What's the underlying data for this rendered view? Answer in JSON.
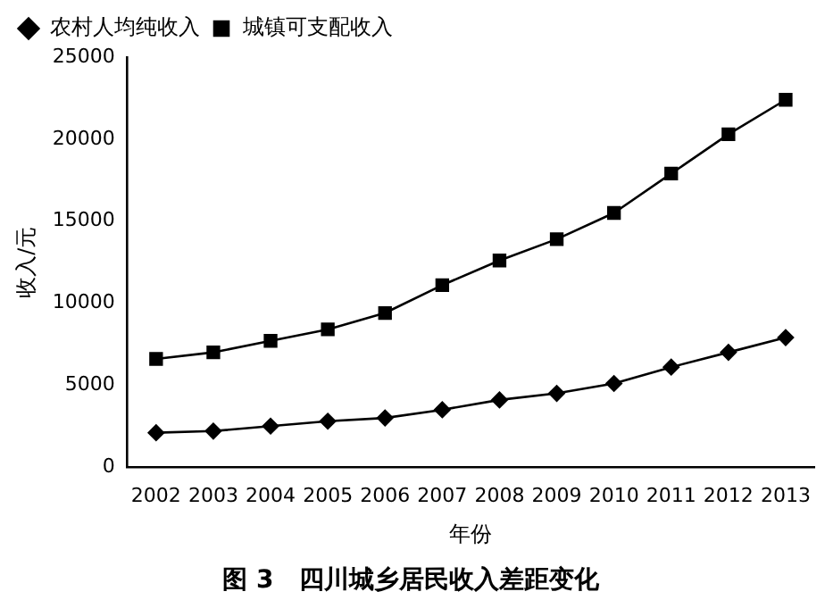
{
  "chart_data": {
    "type": "line",
    "title": "图 3　四川城乡居民收入差距变化",
    "xlabel": "年份",
    "ylabel": "收入/元",
    "categories": [
      "2002",
      "2003",
      "2004",
      "2005",
      "2006",
      "2007",
      "2008",
      "2009",
      "2010",
      "2011",
      "2012",
      "2013"
    ],
    "series": [
      {
        "name": "农村人均纯收入",
        "color": "#000000",
        "marker": "diamond",
        "values": [
          2100,
          2200,
          2500,
          2800,
          3000,
          3500,
          4100,
          4500,
          5100,
          6100,
          7000,
          7900
        ]
      },
      {
        "name": "城镇可支配收入",
        "color": "#000000",
        "marker": "square",
        "values": [
          6600,
          7000,
          7700,
          8400,
          9400,
          11100,
          12600,
          13900,
          15500,
          17900,
          20300,
          22400
        ]
      }
    ],
    "ylim": [
      0,
      25000
    ],
    "yticks": [
      0,
      5000,
      10000,
      15000,
      20000,
      25000
    ],
    "grid": false,
    "legend": "top left",
    "line_style": "solid"
  }
}
